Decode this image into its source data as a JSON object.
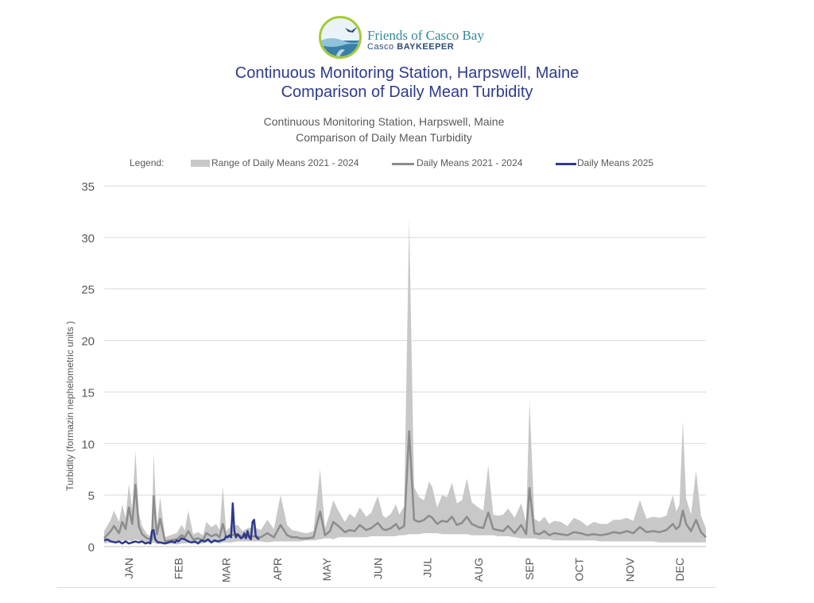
{
  "logo": {
    "name": "Friends of Casco Bay",
    "tagline_prefix": "Casco",
    "tagline_suffix": "BAYKEEPER"
  },
  "header": {
    "title_line1": "Continuous Monitoring Station, Harpswell, Maine",
    "title_line2": "Comparison of Daily Mean Turbidity"
  },
  "colors": {
    "range": "#c8c8c8",
    "means_hist": "#8c8c8c",
    "means_2025": "#2e3a8c",
    "grid": "#d9d9d9",
    "text": "#595959"
  },
  "chart_data": {
    "type": "area",
    "title": "Continuous Monitoring Station, Harpswell, Maine",
    "subtitle": "Comparison of Daily Mean Turbidity",
    "ylabel": "Turbidity (formazin nephelometric units )",
    "xlabel": "",
    "ylim": [
      0,
      35
    ],
    "yticks": [
      0,
      5,
      10,
      15,
      20,
      25,
      30,
      35
    ],
    "grid": true,
    "legend_position": "top",
    "legend_title": "Legend:",
    "x_unit": "day of year",
    "xlim": [
      1,
      366
    ],
    "month_labels": [
      "JAN",
      "FEB",
      "MAR",
      "APR",
      "MAY",
      "JUN",
      "JUL",
      "AUG",
      "SEP",
      "OCT",
      "NOV",
      "DEC"
    ],
    "month_label_day": [
      16,
      46,
      75,
      106,
      136,
      167,
      197,
      228,
      259,
      289,
      320,
      350
    ],
    "series": [
      {
        "name": "Range of Daily Means 2021 - 2024",
        "kind": "band",
        "x": [
          1,
          5,
          7,
          10,
          12,
          14,
          16,
          18,
          20,
          22,
          24,
          27,
          30,
          31,
          33,
          35,
          38,
          41,
          45,
          48,
          50,
          52,
          55,
          58,
          61,
          63,
          66,
          69,
          71,
          73,
          75,
          78,
          82,
          85,
          88,
          92,
          96,
          100,
          104,
          108,
          112,
          115,
          118,
          120,
          124,
          128,
          132,
          135,
          138,
          140,
          143,
          147,
          150,
          153,
          156,
          160,
          163,
          167,
          170,
          172,
          175,
          178,
          180,
          183,
          186,
          189,
          192,
          195,
          198,
          200,
          203,
          206,
          209,
          212,
          215,
          218,
          221,
          224,
          228,
          231,
          234,
          237,
          240,
          243,
          246,
          250,
          254,
          257,
          259,
          262,
          265,
          268,
          271,
          274,
          278,
          282,
          286,
          290,
          294,
          298,
          302,
          306,
          310,
          314,
          318,
          322,
          326,
          330,
          334,
          338,
          342,
          346,
          348,
          350,
          352,
          354,
          357,
          360,
          363,
          366
        ],
        "low": [
          0.3,
          0.4,
          0.5,
          0.4,
          0.6,
          0.5,
          0.6,
          0.5,
          0.7,
          0.6,
          0.4,
          0.3,
          0.3,
          0.4,
          0.2,
          0.3,
          0.2,
          0.3,
          0.2,
          0.3,
          0.3,
          0.4,
          0.3,
          0.3,
          0.3,
          0.4,
          0.4,
          0.4,
          0.3,
          0.4,
          0.4,
          0.4,
          0.5,
          0.5,
          0.5,
          0.5,
          0.5,
          0.4,
          0.5,
          0.5,
          0.5,
          0.5,
          0.5,
          0.5,
          0.6,
          0.6,
          0.7,
          0.8,
          0.8,
          0.7,
          0.9,
          0.9,
          0.9,
          0.9,
          0.9,
          0.9,
          1.0,
          1.0,
          1.0,
          1.0,
          1.0,
          1.0,
          1.1,
          1.1,
          1.2,
          1.2,
          1.2,
          1.3,
          1.3,
          1.3,
          1.3,
          1.2,
          1.2,
          1.2,
          1.2,
          1.2,
          1.2,
          1.1,
          1.1,
          1.1,
          1.1,
          1.1,
          1.0,
          1.0,
          1.0,
          0.9,
          0.8,
          0.8,
          0.8,
          0.8,
          0.7,
          0.7,
          0.7,
          0.6,
          0.6,
          0.6,
          0.6,
          0.6,
          0.6,
          0.6,
          0.5,
          0.5,
          0.5,
          0.5,
          0.5,
          0.5,
          0.5,
          0.5,
          0.5,
          0.4,
          0.4,
          0.4,
          0.4,
          0.4,
          0.4,
          0.4,
          0.4,
          0.4,
          0.4,
          0.4
        ],
        "high": [
          1.5,
          2.6,
          3.5,
          2.4,
          4.1,
          2.8,
          6.1,
          3.6,
          9.3,
          3.2,
          2.0,
          1.2,
          1.0,
          9.1,
          2.0,
          4.8,
          0.9,
          1.1,
          1.3,
          2.1,
          1.6,
          3.5,
          1.2,
          1.4,
          1.1,
          2.4,
          1.9,
          2.2,
          1.6,
          5.8,
          1.5,
          2.0,
          2.1,
          1.5,
          1.8,
          1.9,
          1.6,
          2.6,
          1.7,
          5.0,
          2.1,
          1.6,
          1.5,
          1.4,
          1.3,
          1.5,
          7.5,
          1.8,
          3.3,
          4.5,
          3.5,
          2.4,
          3.2,
          2.8,
          3.8,
          2.9,
          3.3,
          4.9,
          3.0,
          2.8,
          3.2,
          4.1,
          3.1,
          3.9,
          31.8,
          5.8,
          4.8,
          4.5,
          6.3,
          5.8,
          3.8,
          5.0,
          4.8,
          6.2,
          4.2,
          4.5,
          6.6,
          4.3,
          3.8,
          3.5,
          7.9,
          3.1,
          3.0,
          3.1,
          3.7,
          2.8,
          4.2,
          2.4,
          14.2,
          2.7,
          2.4,
          2.9,
          2.2,
          2.5,
          2.4,
          2.0,
          2.8,
          2.5,
          2.0,
          2.4,
          2.2,
          2.2,
          2.6,
          2.6,
          2.8,
          2.5,
          4.5,
          2.7,
          2.9,
          2.8,
          3.0,
          5.0,
          3.4,
          4.1,
          12.2,
          4.7,
          3.1,
          7.4,
          3.0,
          1.8
        ]
      },
      {
        "name": "Daily Means 2021 - 2024",
        "kind": "line",
        "x": [
          1,
          5,
          7,
          10,
          12,
          14,
          16,
          18,
          20,
          22,
          24,
          27,
          30,
          31,
          33,
          35,
          38,
          41,
          45,
          48,
          50,
          52,
          55,
          58,
          61,
          63,
          66,
          69,
          71,
          73,
          75,
          78,
          82,
          85,
          88,
          92,
          96,
          100,
          104,
          108,
          112,
          115,
          118,
          120,
          124,
          128,
          132,
          135,
          138,
          140,
          143,
          147,
          150,
          153,
          156,
          160,
          163,
          167,
          170,
          172,
          175,
          178,
          180,
          183,
          186,
          189,
          192,
          195,
          198,
          200,
          203,
          206,
          209,
          212,
          215,
          218,
          221,
          224,
          228,
          231,
          234,
          237,
          240,
          243,
          246,
          250,
          254,
          257,
          259,
          262,
          265,
          268,
          271,
          274,
          278,
          282,
          286,
          290,
          294,
          298,
          302,
          306,
          310,
          314,
          318,
          322,
          326,
          330,
          334,
          338,
          342,
          346,
          348,
          350,
          352,
          354,
          357,
          360,
          363,
          366
        ],
        "values": [
          0.8,
          1.5,
          2.0,
          1.3,
          2.4,
          1.7,
          3.8,
          2.2,
          6.0,
          2.0,
          1.2,
          0.8,
          0.7,
          4.9,
          1.2,
          2.7,
          0.5,
          0.6,
          0.7,
          1.1,
          0.9,
          1.5,
          0.7,
          0.8,
          0.6,
          1.3,
          1.0,
          1.2,
          0.9,
          2.2,
          0.9,
          1.1,
          1.2,
          0.9,
          1.0,
          1.0,
          0.9,
          1.3,
          0.9,
          2.1,
          1.1,
          0.9,
          0.9,
          0.8,
          0.8,
          0.9,
          3.4,
          1.1,
          1.5,
          2.4,
          2.0,
          1.4,
          1.6,
          1.5,
          2.1,
          1.6,
          1.8,
          2.3,
          1.7,
          1.6,
          1.8,
          2.2,
          1.7,
          2.0,
          11.2,
          2.6,
          2.4,
          2.6,
          3.0,
          2.8,
          2.2,
          2.5,
          2.4,
          2.9,
          2.1,
          2.3,
          2.9,
          2.2,
          1.9,
          1.8,
          3.3,
          1.7,
          1.6,
          1.5,
          2.0,
          1.3,
          2.1,
          1.2,
          5.7,
          1.3,
          1.2,
          1.5,
          1.1,
          1.3,
          1.2,
          1.1,
          1.4,
          1.3,
          1.1,
          1.2,
          1.1,
          1.2,
          1.4,
          1.3,
          1.5,
          1.3,
          1.9,
          1.4,
          1.5,
          1.4,
          1.6,
          2.2,
          1.7,
          2.0,
          3.5,
          2.2,
          1.5,
          2.6,
          1.4,
          0.9
        ]
      },
      {
        "name": "Daily Means 2025",
        "kind": "line",
        "x": [
          1,
          3,
          5,
          8,
          10,
          12,
          14,
          16,
          18,
          20,
          22,
          24,
          26,
          28,
          29,
          30,
          31,
          32,
          33,
          34,
          35,
          38,
          40,
          42,
          44,
          45,
          46,
          48,
          50,
          52,
          54,
          56,
          58,
          60,
          62,
          64,
          66,
          68,
          70,
          72,
          74,
          75,
          76,
          77,
          78,
          79,
          80,
          81,
          82,
          83,
          84,
          85,
          86,
          87,
          88,
          89,
          90,
          91,
          92,
          93,
          94,
          95
        ],
        "values": [
          0.6,
          0.7,
          0.5,
          0.4,
          0.5,
          0.3,
          0.5,
          0.3,
          0.4,
          0.5,
          0.4,
          0.5,
          0.3,
          0.4,
          0.3,
          1.5,
          1.6,
          0.7,
          0.5,
          0.4,
          0.4,
          0.3,
          0.4,
          0.5,
          0.4,
          0.6,
          0.5,
          0.8,
          0.7,
          0.5,
          0.4,
          0.5,
          0.3,
          0.6,
          0.5,
          0.7,
          0.4,
          0.6,
          0.5,
          0.6,
          0.7,
          1.0,
          0.9,
          1.1,
          0.9,
          4.2,
          1.5,
          0.9,
          1.2,
          1.0,
          0.8,
          0.9,
          1.3,
          0.8,
          1.5,
          0.9,
          0.7,
          2.4,
          2.6,
          1.0,
          0.8,
          0.7
        ]
      }
    ]
  }
}
